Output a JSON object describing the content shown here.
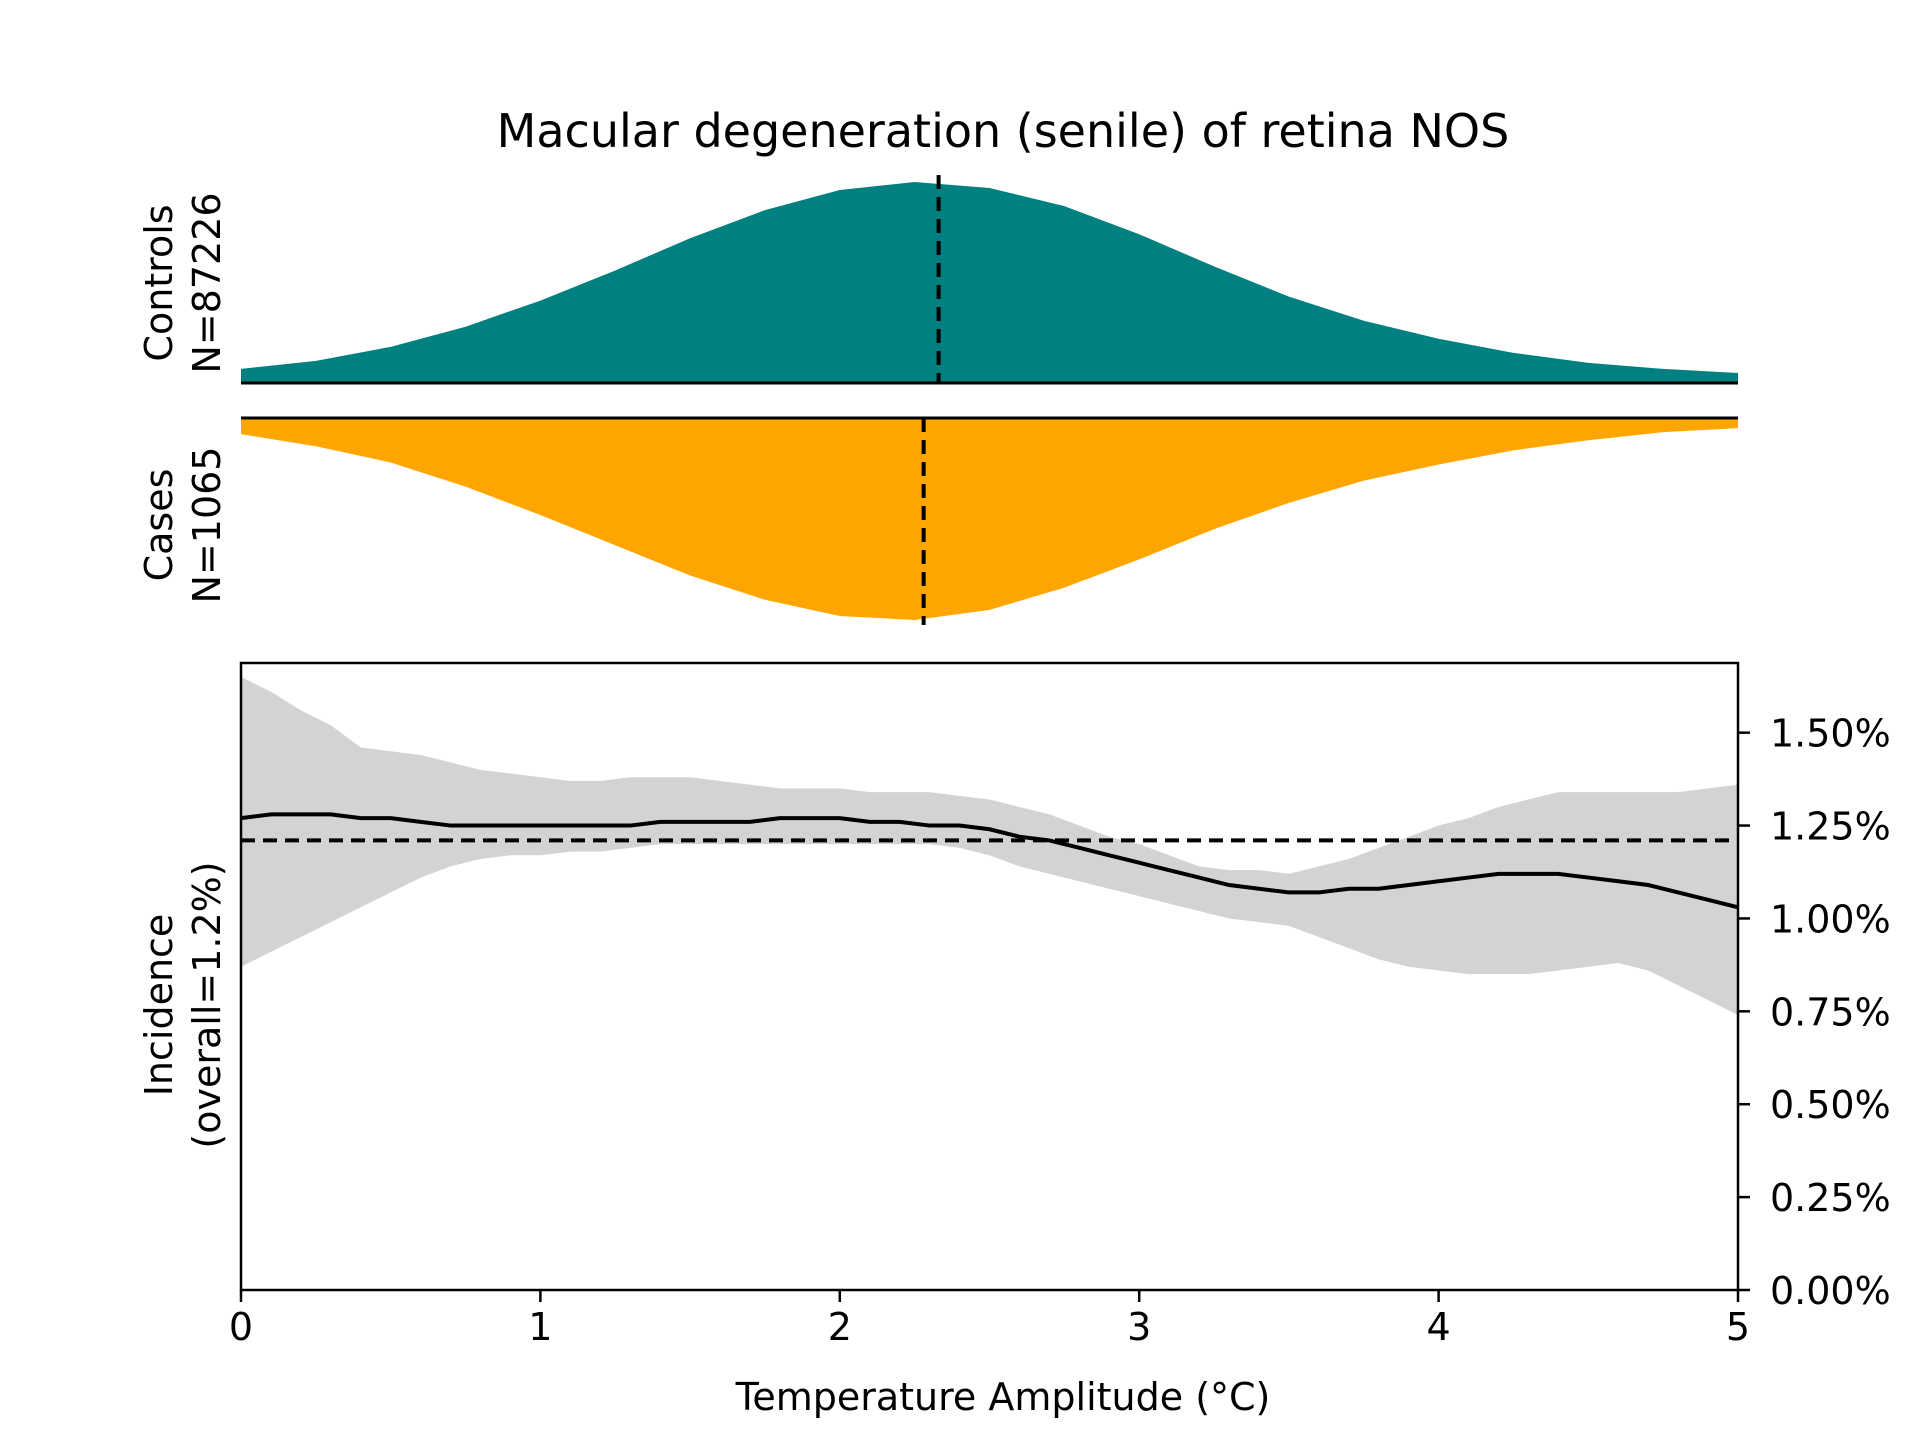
{
  "chart_data": {
    "title": "Macular degeneration (senile) of retina NOS",
    "colors": {
      "controls": "#008080",
      "cases": "#FFA500",
      "ci_band": "#D3D3D3",
      "line": "#000000"
    },
    "controls_panel": {
      "type": "area",
      "label_line1": "Controls",
      "label_line2": "N=87226",
      "median": 2.33,
      "x": [
        0.0,
        0.25,
        0.5,
        0.75,
        1.0,
        1.25,
        1.5,
        1.75,
        2.0,
        2.25,
        2.5,
        2.75,
        3.0,
        3.25,
        3.5,
        3.75,
        4.0,
        4.25,
        4.5,
        4.75,
        5.0
      ],
      "density": [
        0.07,
        0.11,
        0.18,
        0.28,
        0.41,
        0.56,
        0.72,
        0.86,
        0.96,
        1.0,
        0.97,
        0.88,
        0.74,
        0.58,
        0.43,
        0.31,
        0.22,
        0.15,
        0.1,
        0.07,
        0.05
      ]
    },
    "cases_panel": {
      "type": "area",
      "label_line1": "Cases",
      "label_line2": "N=1065",
      "median": 2.28,
      "x": [
        0.0,
        0.25,
        0.5,
        0.75,
        1.0,
        1.25,
        1.5,
        1.75,
        2.0,
        2.25,
        2.5,
        2.75,
        3.0,
        3.25,
        3.5,
        3.75,
        4.0,
        4.25,
        4.5,
        4.75,
        5.0
      ],
      "density": [
        0.08,
        0.14,
        0.22,
        0.34,
        0.48,
        0.63,
        0.78,
        0.9,
        0.98,
        1.0,
        0.95,
        0.84,
        0.7,
        0.55,
        0.42,
        0.31,
        0.23,
        0.16,
        0.11,
        0.07,
        0.05
      ]
    },
    "incidence_panel": {
      "type": "line",
      "xlabel": "Temperature Amplitude (°C)",
      "ylabel_line1": "Incidence",
      "ylabel_line2": "(overall=1.2%)",
      "xlim": [
        0,
        5
      ],
      "ylim": [
        0,
        1.6875
      ],
      "xticks": [
        0,
        1,
        2,
        3,
        4,
        5
      ],
      "xtick_labels": [
        "0",
        "1",
        "2",
        "3",
        "4",
        "5"
      ],
      "yticks": [
        0,
        0.25,
        0.5,
        0.75,
        1.0,
        1.25,
        1.5
      ],
      "ytick_labels": [
        "0.00%",
        "0.25%",
        "0.50%",
        "0.75%",
        "1.00%",
        "1.25%",
        "1.50%"
      ],
      "overall": 1.21,
      "x": [
        0.0,
        0.1,
        0.2,
        0.3,
        0.4,
        0.5,
        0.6,
        0.7,
        0.8,
        0.9,
        1.0,
        1.1,
        1.2,
        1.3,
        1.4,
        1.5,
        1.6,
        1.7,
        1.8,
        1.9,
        2.0,
        2.1,
        2.2,
        2.3,
        2.4,
        2.5,
        2.6,
        2.7,
        2.8,
        2.9,
        3.0,
        3.1,
        3.2,
        3.3,
        3.4,
        3.5,
        3.6,
        3.7,
        3.8,
        3.9,
        4.0,
        4.1,
        4.2,
        4.3,
        4.4,
        4.5,
        4.6,
        4.7,
        4.8,
        4.9,
        5.0
      ],
      "incidence": [
        1.27,
        1.28,
        1.28,
        1.28,
        1.27,
        1.27,
        1.26,
        1.25,
        1.25,
        1.25,
        1.25,
        1.25,
        1.25,
        1.25,
        1.26,
        1.26,
        1.26,
        1.26,
        1.27,
        1.27,
        1.27,
        1.26,
        1.26,
        1.25,
        1.25,
        1.24,
        1.22,
        1.21,
        1.19,
        1.17,
        1.15,
        1.13,
        1.11,
        1.09,
        1.08,
        1.07,
        1.07,
        1.08,
        1.08,
        1.09,
        1.1,
        1.11,
        1.12,
        1.12,
        1.12,
        1.11,
        1.1,
        1.09,
        1.07,
        1.05,
        1.03
      ],
      "ci_upper": [
        1.65,
        1.61,
        1.56,
        1.52,
        1.46,
        1.45,
        1.44,
        1.42,
        1.4,
        1.39,
        1.38,
        1.37,
        1.37,
        1.38,
        1.38,
        1.38,
        1.37,
        1.36,
        1.35,
        1.35,
        1.35,
        1.34,
        1.34,
        1.34,
        1.33,
        1.32,
        1.3,
        1.28,
        1.25,
        1.22,
        1.2,
        1.17,
        1.14,
        1.13,
        1.13,
        1.12,
        1.14,
        1.16,
        1.19,
        1.22,
        1.25,
        1.27,
        1.3,
        1.32,
        1.34,
        1.34,
        1.34,
        1.34,
        1.34,
        1.35,
        1.36
      ],
      "ci_lower": [
        0.87,
        0.91,
        0.95,
        0.99,
        1.03,
        1.07,
        1.11,
        1.14,
        1.16,
        1.17,
        1.17,
        1.18,
        1.18,
        1.19,
        1.2,
        1.2,
        1.2,
        1.2,
        1.2,
        1.2,
        1.2,
        1.2,
        1.2,
        1.2,
        1.19,
        1.17,
        1.14,
        1.12,
        1.1,
        1.08,
        1.06,
        1.04,
        1.02,
        1.0,
        0.99,
        0.98,
        0.95,
        0.92,
        0.89,
        0.87,
        0.86,
        0.85,
        0.85,
        0.85,
        0.86,
        0.87,
        0.88,
        0.86,
        0.82,
        0.78,
        0.74
      ]
    }
  }
}
